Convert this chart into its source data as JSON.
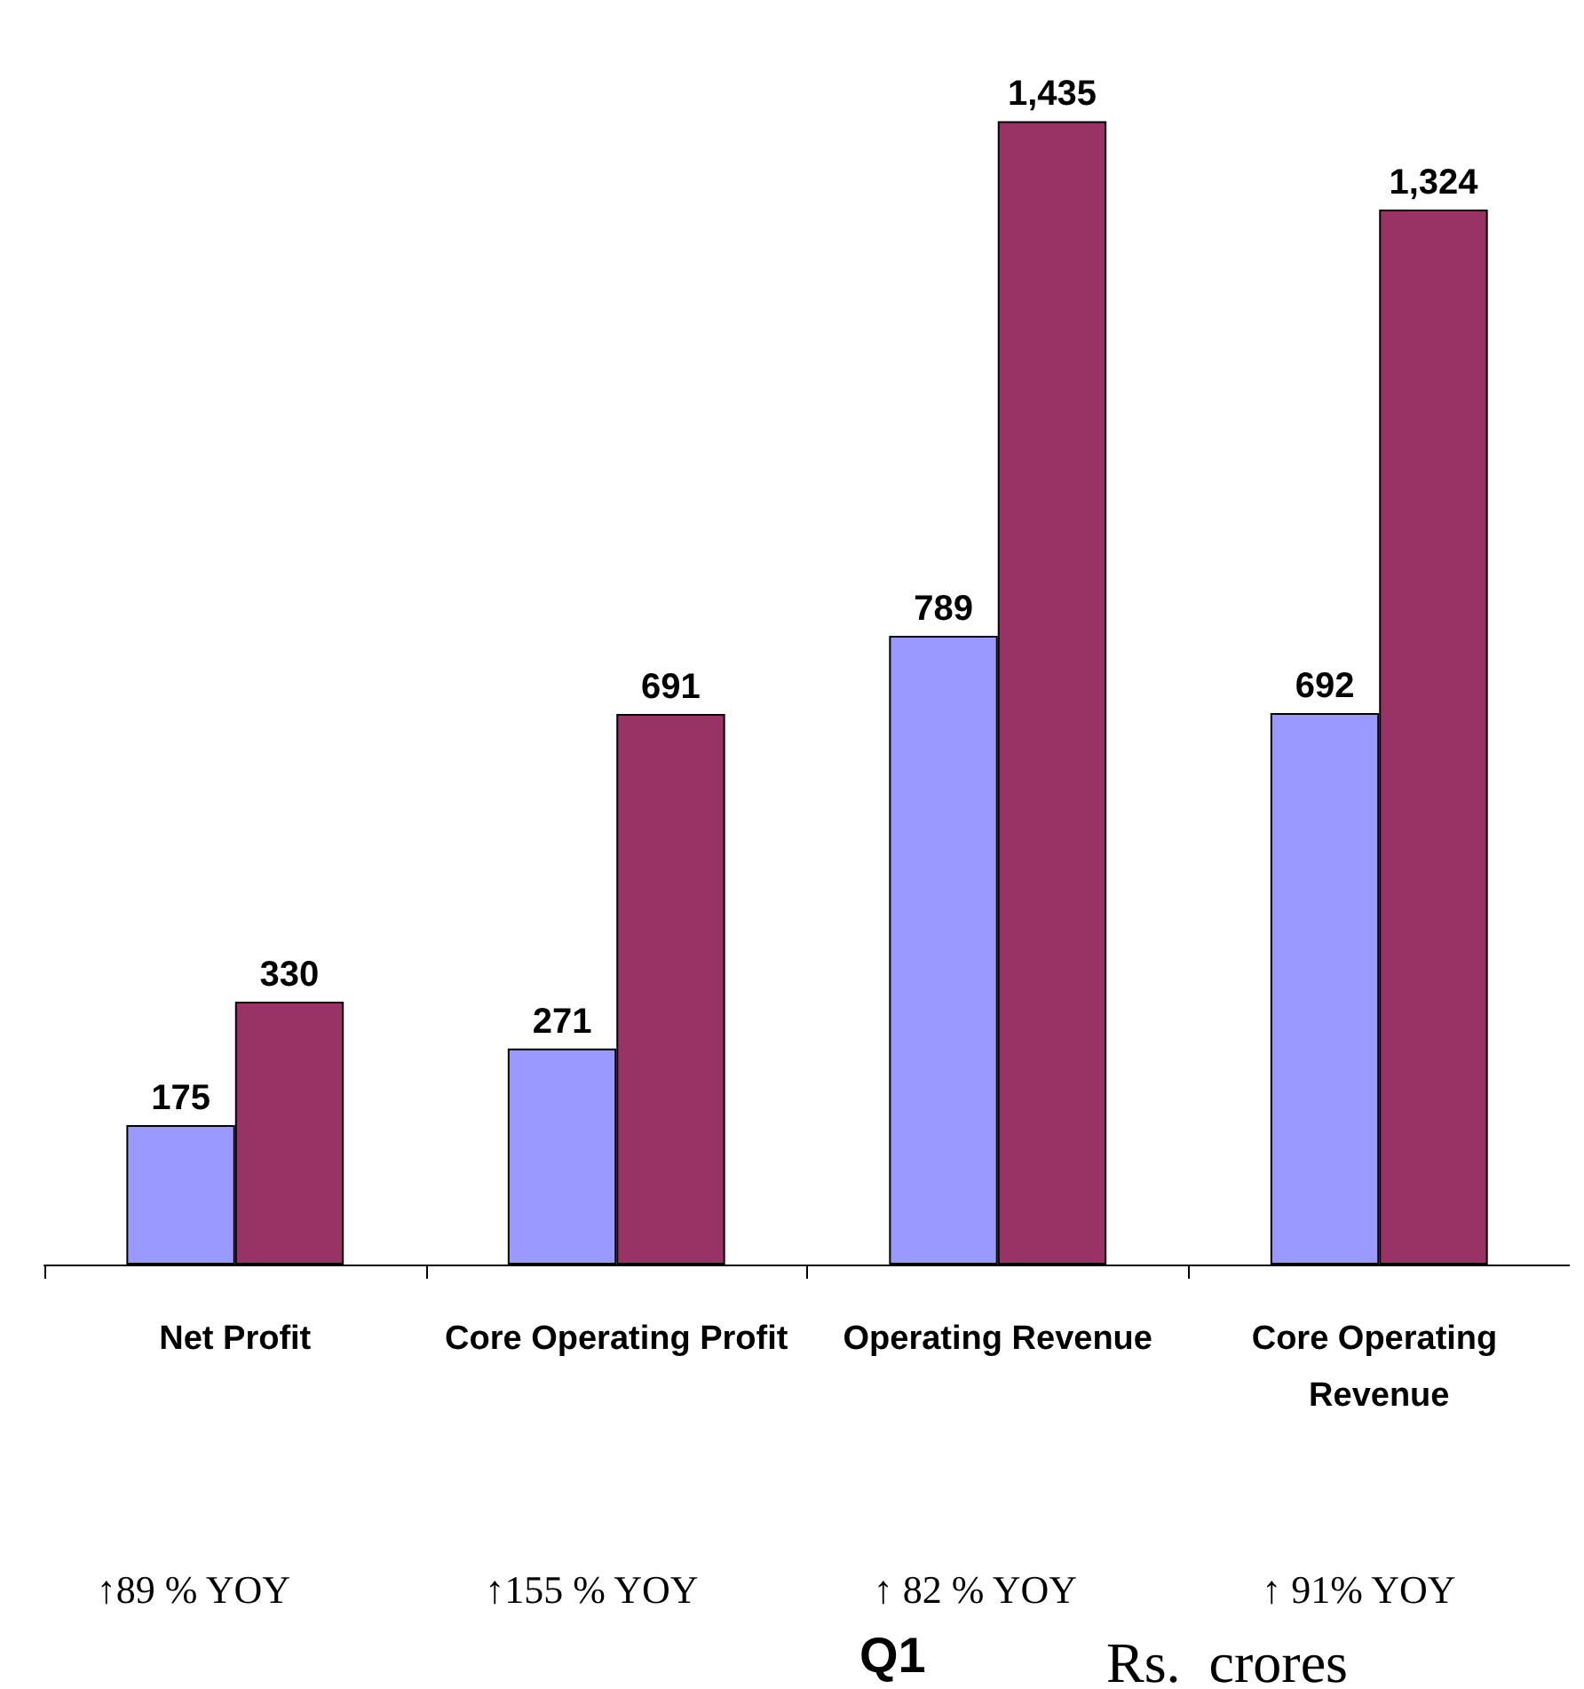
{
  "chart_data": {
    "type": "bar",
    "categories": [
      "Net Profit",
      "Core Operating Profit",
      "Operating Revenue",
      "Core Operating Revenue"
    ],
    "series": [
      {
        "color": "#9999ff",
        "values": [
          175,
          271,
          789,
          692
        ],
        "value_labels": [
          "175",
          "271",
          "789",
          "692"
        ]
      },
      {
        "color": "#993366",
        "values": [
          330,
          691,
          1435,
          1324
        ],
        "value_labels": [
          "330",
          "691",
          "1,435",
          "1,324"
        ]
      }
    ],
    "grid": false,
    "annotations": [
      "↑89 % YOY",
      "↑155 % YOY",
      "↑ 82 % YOY",
      "↑ 91% YOY",
      "Q1",
      "Rs.  crores"
    ]
  }
}
